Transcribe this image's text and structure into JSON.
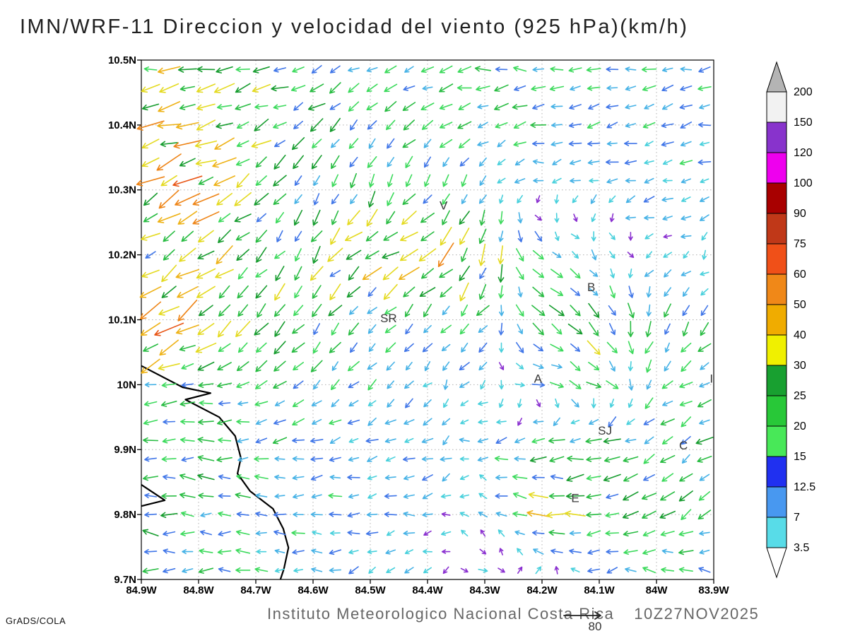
{
  "title": "IMN/WRF-11 Direccion y velocidad del viento (925 hPa)(km/h)",
  "footer": {
    "institute": "Instituto Meteorologico Nacional Costa Rica",
    "datetime": "10Z27NOV2025",
    "credit": "GrADS/COLA"
  },
  "chart_data": {
    "type": "vector_field_map",
    "model": "IMN/WRF-11",
    "variable": "Direccion y velocidad del viento",
    "level": "925 hPa",
    "units": "km/h",
    "valid_time": "10Z27NOV2025",
    "lon_range": [
      -84.9,
      -83.9
    ],
    "lat_range": [
      9.7,
      10.5
    ],
    "grid_step_deg": 0.1,
    "x_ticks": [
      "84.9W",
      "84.8W",
      "84.7W",
      "84.6W",
      "84.5W",
      "84.4W",
      "84.3W",
      "84.2W",
      "84.1W",
      "84W",
      "83.9W"
    ],
    "y_ticks": [
      "10.5N",
      "10.4N",
      "10.3N",
      "10.2N",
      "10.1N",
      "10N",
      "9.9N",
      "9.8N",
      "9.7N"
    ],
    "legend": {
      "labels_top_to_bottom": [
        "200",
        "150",
        "120",
        "100",
        "90",
        "75",
        "60",
        "50",
        "40",
        "30",
        "25",
        "20",
        "15",
        "12.5",
        "7",
        "3.5"
      ],
      "segment_colors_top_to_bottom": [
        "#f2f2f2",
        "#8833cc",
        "#ee00ee",
        "#a80000",
        "#c03818",
        "#f05018",
        "#f08818",
        "#f0ac00",
        "#f0f000",
        "#18a030",
        "#28c838",
        "#48e858",
        "#2030f0",
        "#4898f0",
        "#58dce8"
      ],
      "over_color": "#b4b4b4",
      "under_color": "#ffffff"
    },
    "stations": [
      {
        "label": "V",
        "lon": -84.372,
        "lat": 10.27
      },
      {
        "label": "B",
        "lon": -84.114,
        "lat": 10.144
      },
      {
        "label": "SR",
        "lon": -84.468,
        "lat": 10.096
      },
      {
        "label": "A",
        "lon": -84.207,
        "lat": 10.003
      },
      {
        "label": "SJ",
        "lon": -84.09,
        "lat": 9.923
      },
      {
        "label": "C",
        "lon": -83.953,
        "lat": 9.9
      },
      {
        "label": "E",
        "lon": -84.142,
        "lat": 9.819
      },
      {
        "label": "I",
        "lon": -83.904,
        "lat": 10.003
      }
    ],
    "coastline": [
      [
        -84.9,
        10.029
      ],
      [
        -84.828,
        9.996
      ],
      [
        -84.779,
        9.987
      ],
      [
        -84.823,
        9.977
      ],
      [
        -84.764,
        9.95
      ],
      [
        -84.736,
        9.921
      ],
      [
        -84.726,
        9.887
      ],
      [
        -84.732,
        9.863
      ],
      [
        -84.71,
        9.836
      ],
      [
        -84.67,
        9.809
      ],
      [
        -84.652,
        9.778
      ],
      [
        -84.643,
        9.749
      ],
      [
        -84.651,
        9.716
      ],
      [
        -84.657,
        9.7
      ]
    ],
    "coast_spur": [
      [
        -84.9,
        9.846
      ],
      [
        -84.859,
        9.822
      ],
      [
        -84.9,
        9.813
      ]
    ],
    "wind_grid": {
      "lons": [
        -84.9,
        -84.8,
        -84.7,
        -84.6,
        -84.5,
        -84.4,
        -84.3,
        -84.2,
        -84.1,
        -84.0,
        -83.9
      ],
      "lats": [
        10.5,
        10.4,
        10.3,
        10.2,
        10.1,
        10.0,
        9.9,
        9.8,
        9.7
      ],
      "uv_kmh": [
        [
          [
            -25,
            -3
          ],
          [
            -28,
            -2
          ],
          [
            -20,
            -5
          ],
          [
            -16,
            -6
          ],
          [
            -15,
            -6
          ],
          [
            -15,
            -4
          ],
          [
            -18,
            -1
          ],
          [
            -18,
            2
          ],
          [
            -16,
            0
          ],
          [
            -14,
            -2
          ],
          [
            -12,
            -2
          ]
        ],
        [
          [
            -38,
            -10
          ],
          [
            -32,
            -9
          ],
          [
            -22,
            -10
          ],
          [
            -16,
            -12
          ],
          [
            -13,
            -12
          ],
          [
            -12,
            -9
          ],
          [
            -15,
            -6
          ],
          [
            -15,
            -3
          ],
          [
            -12,
            -3
          ],
          [
            -10,
            -3
          ],
          [
            -10,
            -2
          ]
        ],
        [
          [
            -55,
            -28
          ],
          [
            -42,
            -22
          ],
          [
            -18,
            -16
          ],
          [
            -9,
            -16
          ],
          [
            -6,
            -15
          ],
          [
            -6,
            -13
          ],
          [
            -4,
            -8
          ],
          [
            -3,
            -3
          ],
          [
            -8,
            -2
          ],
          [
            -10,
            -2
          ],
          [
            -10,
            -3
          ]
        ],
        [
          [
            -5,
            -4
          ],
          [
            -30,
            -20
          ],
          [
            -18,
            -18
          ],
          [
            -12,
            -18
          ],
          [
            -30,
            -18
          ],
          [
            -38,
            -24
          ],
          [
            -8,
            -28
          ],
          [
            12,
            -6
          ],
          [
            6,
            -5
          ],
          [
            -3,
            -3
          ],
          [
            -5,
            -5
          ]
        ],
        [
          [
            -45,
            -30
          ],
          [
            -35,
            -24
          ],
          [
            -20,
            -18
          ],
          [
            -12,
            -15
          ],
          [
            -9,
            -12
          ],
          [
            -9,
            -11
          ],
          [
            -12,
            -13
          ],
          [
            18,
            -12
          ],
          [
            12,
            -22
          ],
          [
            -6,
            -16
          ],
          [
            -9,
            -11
          ]
        ],
        [
          [
            -20,
            -5
          ],
          [
            -16,
            -4
          ],
          [
            -13,
            -8
          ],
          [
            -11,
            -10
          ],
          [
            -8,
            -8
          ],
          [
            -6,
            -6
          ],
          [
            -4,
            -6
          ],
          [
            14,
            -4
          ],
          [
            16,
            -9
          ],
          [
            -11,
            -9
          ],
          [
            -13,
            -6
          ]
        ],
        [
          [
            -20,
            0
          ],
          [
            -19,
            0
          ],
          [
            -16,
            -1
          ],
          [
            -13,
            -2
          ],
          [
            -10,
            -3
          ],
          [
            -9,
            -3
          ],
          [
            -8,
            -2
          ],
          [
            -20,
            -2
          ],
          [
            -24,
            -4
          ],
          [
            -14,
            -9
          ],
          [
            -20,
            -13
          ]
        ],
        [
          [
            -19,
            2
          ],
          [
            -18,
            1
          ],
          [
            -15,
            0
          ],
          [
            -12,
            0
          ],
          [
            -10,
            -2
          ],
          [
            -8,
            -2
          ],
          [
            -5,
            4
          ],
          [
            -30,
            8
          ],
          [
            -22,
            -5
          ],
          [
            -16,
            -11
          ],
          [
            -16,
            -9
          ]
        ],
        [
          [
            -16,
            0
          ],
          [
            -15,
            0
          ],
          [
            -12,
            0
          ],
          [
            -10,
            0
          ],
          [
            -8,
            -2
          ],
          [
            -5,
            -3
          ],
          [
            9,
            -3
          ],
          [
            6,
            5
          ],
          [
            -8,
            -5
          ],
          [
            -13,
            6
          ],
          [
            -11,
            4
          ]
        ]
      ]
    },
    "arrow_speed_colors": [
      [
        4.5,
        "#8a30d0"
      ],
      [
        8,
        "#48d0dc"
      ],
      [
        12.5,
        "#46b2e6"
      ],
      [
        15,
        "#4076e8"
      ],
      [
        20,
        "#3cda5c"
      ],
      [
        25,
        "#28bc42"
      ],
      [
        30,
        "#169c2e"
      ],
      [
        40,
        "#e4da20"
      ],
      [
        50,
        "#eeb216"
      ],
      [
        60,
        "#ee8416"
      ],
      [
        75,
        "#e85414"
      ],
      [
        90,
        "#da2412"
      ],
      [
        9999,
        "#b00808"
      ]
    ],
    "ref_vector": {
      "speed": 80,
      "label": "80"
    }
  }
}
